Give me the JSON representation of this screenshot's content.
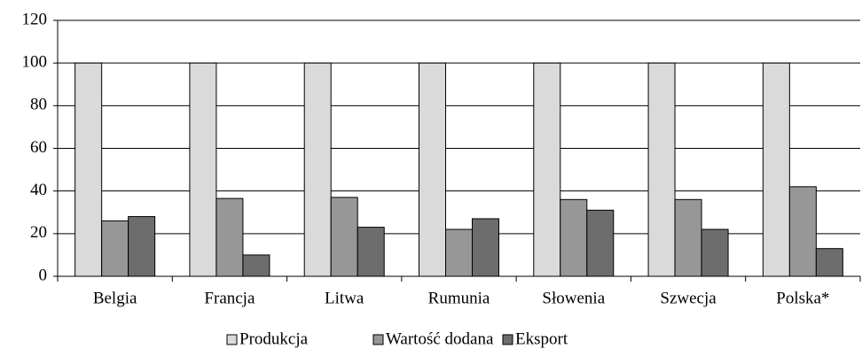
{
  "chart_data": {
    "type": "bar",
    "categories": [
      "Belgia",
      "Francja",
      "Litwa",
      "Rumunia",
      "Słowenia",
      "Szwecja",
      "Polska*"
    ],
    "series": [
      {
        "name": "Produkcja",
        "color": "#dadada",
        "values": [
          100,
          100,
          100,
          100,
          100,
          100,
          100
        ]
      },
      {
        "name": "Wartość dodana",
        "color": "#979797",
        "values": [
          26,
          36.5,
          37,
          22,
          36,
          36,
          42
        ]
      },
      {
        "name": "Eksport",
        "color": "#6d6d6d",
        "values": [
          28,
          10,
          23,
          27,
          31,
          22,
          13
        ]
      }
    ],
    "ylim": [
      0,
      120
    ],
    "yticks": [
      0,
      20,
      40,
      60,
      80,
      100,
      120
    ],
    "grid": true,
    "legend": "bottom"
  }
}
